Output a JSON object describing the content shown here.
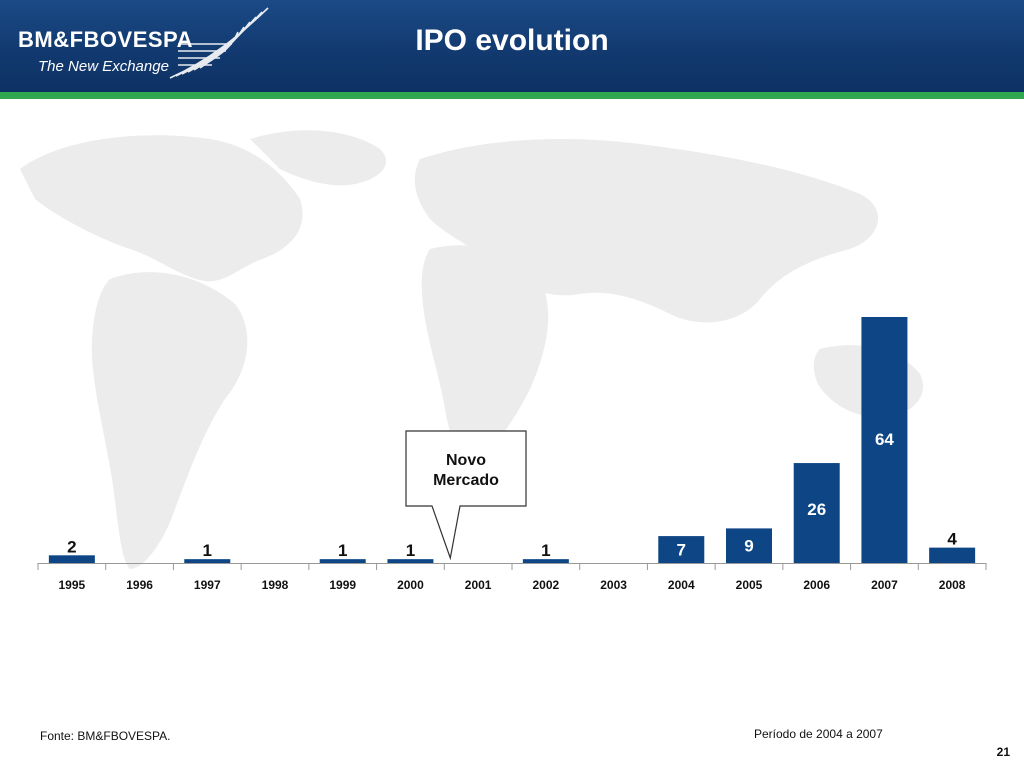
{
  "header": {
    "brand_name": "BM&FBOVESPA",
    "tagline": "The New Exchange",
    "title": "IPO evolution"
  },
  "colors": {
    "header_blue": "#123a70",
    "accent_green": "#2fa84f",
    "bar_blue": "#0d4585"
  },
  "chart_data": {
    "type": "bar",
    "categories": [
      "1995",
      "1996",
      "1997",
      "1998",
      "1999",
      "2000",
      "2001",
      "2002",
      "2003",
      "2004",
      "2005",
      "2006",
      "2007",
      "2008"
    ],
    "values": [
      2,
      0,
      1,
      0,
      1,
      1,
      0,
      1,
      0,
      7,
      9,
      26,
      64,
      4
    ],
    "value_labels": [
      "2",
      "",
      "1",
      "",
      "1",
      "1",
      "",
      "1",
      "",
      "7",
      "9",
      "26",
      "64",
      "4"
    ],
    "title": "",
    "xlabel": "",
    "ylabel": "",
    "ylim": [
      0,
      64
    ],
    "grid": false,
    "legend": "none",
    "annotation": {
      "text_lines": [
        "Novo",
        "Mercado"
      ],
      "points_to": "2001"
    }
  },
  "footer": {
    "source": "Fonte: BM&FBOVESPA.",
    "period": "Período de 2004 a 2007",
    "page_number": "21"
  }
}
